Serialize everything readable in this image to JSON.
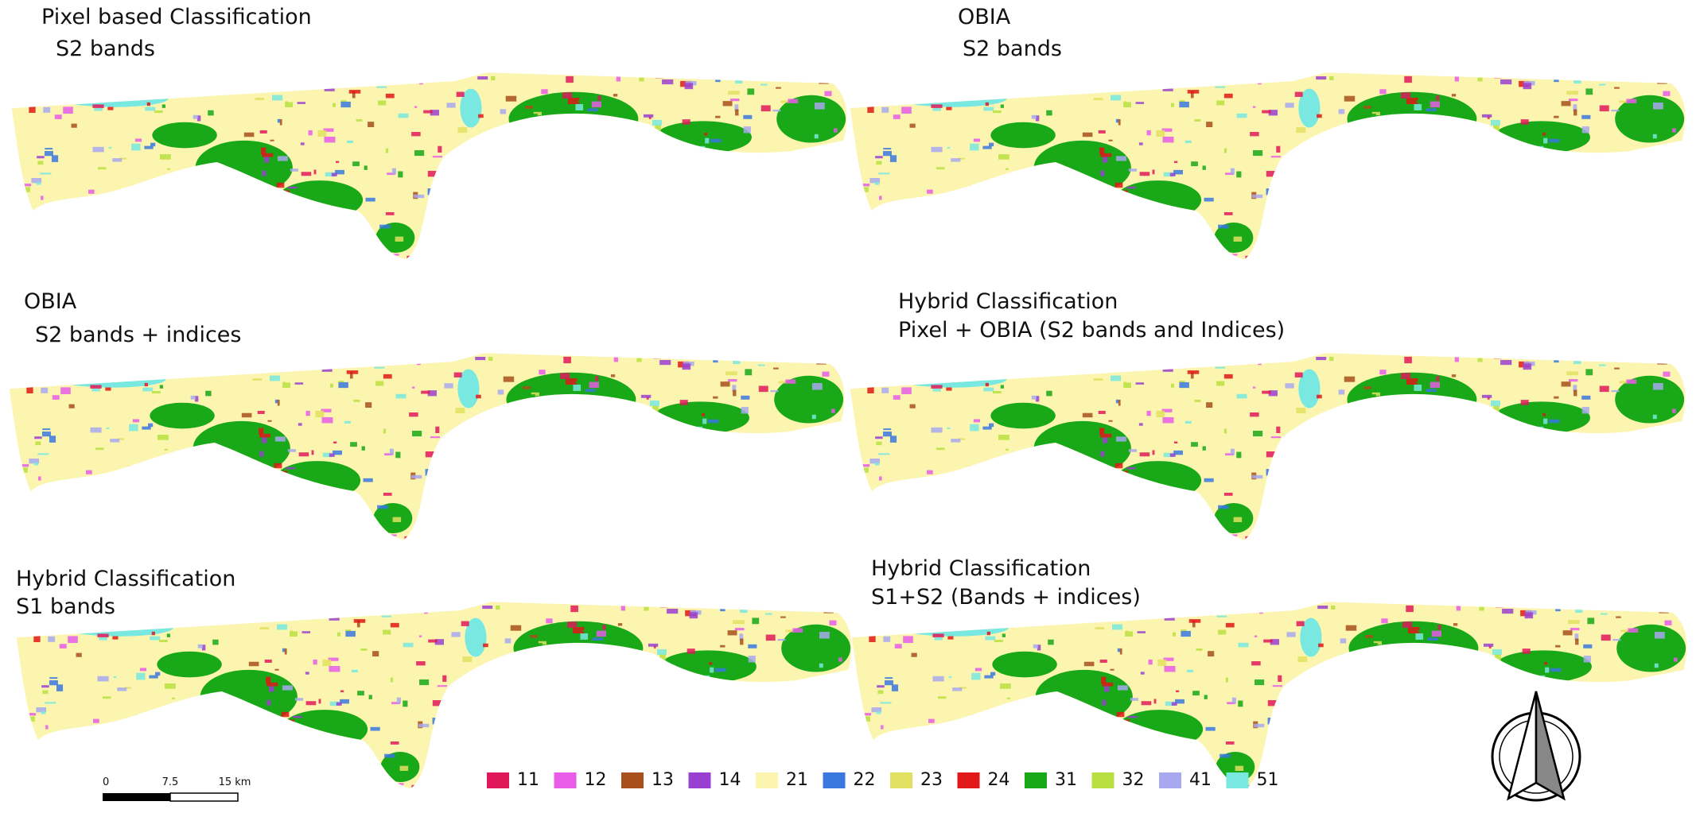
{
  "panels": [
    {
      "title": [
        "Pixel based Classification",
        "S2 bands"
      ]
    },
    {
      "title": [
        "OBIA",
        "S2 bands"
      ]
    },
    {
      "title": [
        "OBIA",
        "S2 bands + indices"
      ]
    },
    {
      "title": [
        "Hybrid Classification",
        "Pixel + OBIA (S2 bands and Indices)"
      ]
    },
    {
      "title": [
        "Hybrid Classification",
        "S1 bands"
      ]
    },
    {
      "title": [
        "Hybrid Classification",
        "S1+S2 (Bands + indices)"
      ]
    }
  ],
  "legend": [
    {
      "label": "11",
      "color": "#e0185a"
    },
    {
      "label": "12",
      "color": "#e85ce8"
    },
    {
      "label": "13",
      "color": "#a8501c"
    },
    {
      "label": "14",
      "color": "#9a40d0"
    },
    {
      "label": "21",
      "color": "#fbf5b0"
    },
    {
      "label": "22",
      "color": "#3a78e0"
    },
    {
      "label": "23",
      "color": "#e2e060"
    },
    {
      "label": "24",
      "color": "#e01818"
    },
    {
      "label": "31",
      "color": "#18a818"
    },
    {
      "label": "32",
      "color": "#b8e040"
    },
    {
      "label": "41",
      "color": "#a8a8f0"
    },
    {
      "label": "51",
      "color": "#78e8e0"
    }
  ],
  "scale_bar": {
    "labels": [
      "0",
      "7.5",
      "15 km"
    ]
  }
}
